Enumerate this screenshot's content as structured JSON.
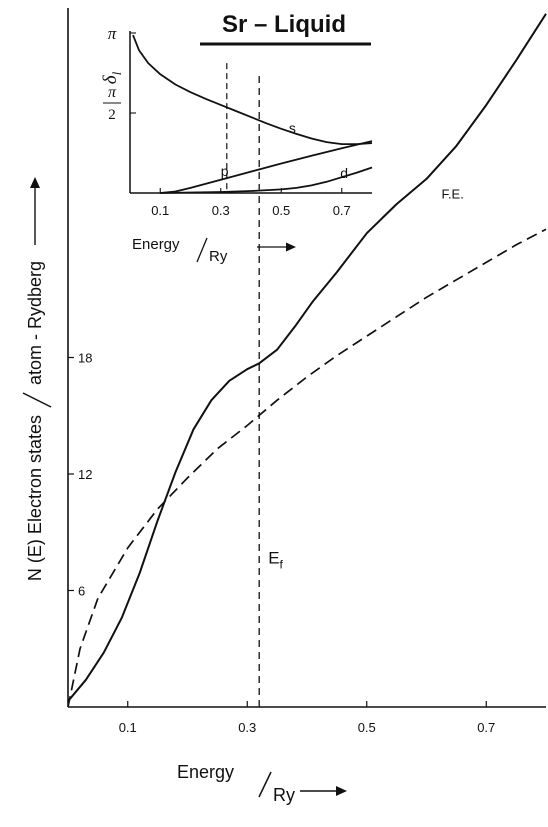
{
  "chart_data": [
    {
      "type": "line",
      "title": "Sr – Liquid",
      "xlabel": "Energy",
      "xlabel_unit": "Ry",
      "ylabel_part1": "N (E)   Electron   states",
      "ylabel_part2": "atom - Rydberg",
      "xlim": [
        0,
        0.8
      ],
      "ylim": [
        0,
        36
      ],
      "x_ticks": [
        0.1,
        0.3,
        0.5,
        0.7
      ],
      "x_tick_labels": [
        "0.1",
        "0.3",
        "0.5",
        "0.7"
      ],
      "y_ticks": [
        6,
        12,
        18
      ],
      "y_tick_labels": [
        "6",
        "12",
        "18"
      ],
      "grid": false,
      "series": [
        {
          "style": "solid",
          "x": [
            0,
            0.03,
            0.06,
            0.09,
            0.12,
            0.15,
            0.18,
            0.21,
            0.24,
            0.27,
            0.3,
            0.32,
            0.35,
            0.38,
            0.41,
            0.45,
            0.5,
            0.55,
            0.6,
            0.65,
            0.7,
            0.75,
            0.8
          ],
          "y": [
            0.3,
            1.4,
            2.8,
            4.6,
            6.9,
            9.6,
            12.1,
            14.3,
            15.8,
            16.8,
            17.4,
            17.7,
            18.4,
            19.6,
            20.9,
            22.4,
            24.4,
            25.9,
            27.2,
            28.9,
            31.0,
            33.3,
            35.7
          ]
        },
        {
          "name": "F.E.",
          "style": "dashed",
          "x": [
            0,
            0.02,
            0.05,
            0.1,
            0.15,
            0.2,
            0.25,
            0.3,
            0.35,
            0.4,
            0.45,
            0.5,
            0.55,
            0.6,
            0.65,
            0.7,
            0.75,
            0.8
          ],
          "y": [
            0,
            3.0,
            5.6,
            8.2,
            10.2,
            11.8,
            13.3,
            14.5,
            15.8,
            17.0,
            18.1,
            19.1,
            20.1,
            21.1,
            22.0,
            22.9,
            23.8,
            24.6
          ]
        }
      ],
      "annotations": [
        {
          "text": "E",
          "subscript": "f",
          "x": 0.32
        },
        {
          "text": "F.E.",
          "x": 0.625
        }
      ],
      "fermi_energy": 0.32
    },
    {
      "type": "line",
      "title": "",
      "ylabel": "δ",
      "ylabel_subscript": "l",
      "xlabel": "Energy",
      "xlabel_unit": "Ry",
      "xlim": [
        0,
        0.8
      ],
      "ylim": [
        0,
        3.1416
      ],
      "x_ticks": [
        0.1,
        0.3,
        0.5,
        0.7
      ],
      "x_tick_labels": [
        "0.1",
        "0.3",
        "0.5",
        "0.7"
      ],
      "y_tick_labels": [
        "π",
        "π",
        "2"
      ],
      "grid": false,
      "series": [
        {
          "name": "s",
          "x": [
            0.01,
            0.03,
            0.06,
            0.1,
            0.15,
            0.2,
            0.25,
            0.3,
            0.35,
            0.4,
            0.45,
            0.5,
            0.55,
            0.6,
            0.65,
            0.7,
            0.75,
            0.8
          ],
          "y": [
            3.1,
            2.8,
            2.55,
            2.33,
            2.13,
            1.98,
            1.85,
            1.73,
            1.61,
            1.49,
            1.37,
            1.26,
            1.16,
            1.07,
            1.0,
            0.96,
            0.96,
            0.98
          ]
        },
        {
          "name": "p",
          "x": [
            0.1,
            0.15,
            0.2,
            0.3,
            0.4,
            0.5,
            0.6,
            0.7,
            0.8
          ],
          "y": [
            0,
            0.03,
            0.1,
            0.26,
            0.42,
            0.58,
            0.73,
            0.88,
            1.02
          ]
        },
        {
          "name": "d",
          "x": [
            0.1,
            0.2,
            0.3,
            0.4,
            0.5,
            0.55,
            0.6,
            0.65,
            0.7,
            0.75,
            0.8
          ],
          "y": [
            0,
            0.01,
            0.02,
            0.04,
            0.07,
            0.1,
            0.15,
            0.22,
            0.31,
            0.4,
            0.5
          ]
        }
      ],
      "fermi_energy": 0.32
    }
  ]
}
